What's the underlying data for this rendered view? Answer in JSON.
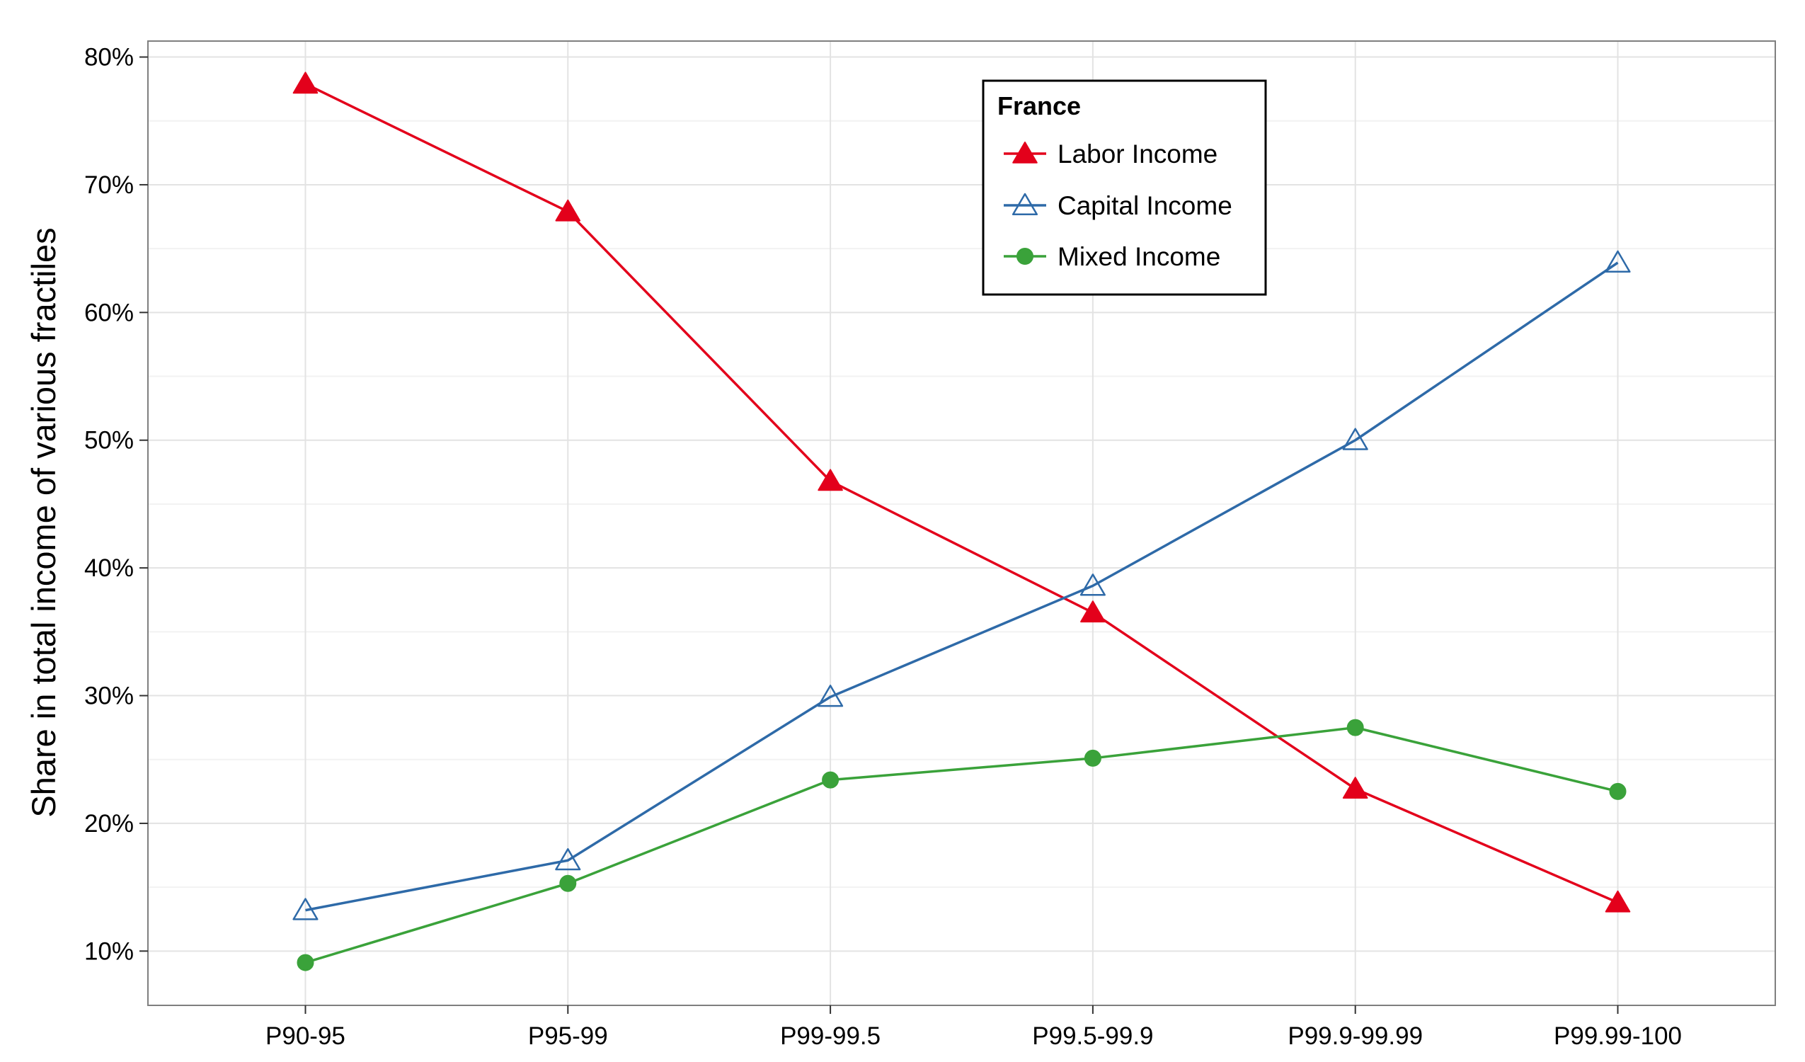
{
  "chart_data": {
    "type": "line",
    "title": "",
    "xlabel": "",
    "ylabel": "Share in total income of various fractiles",
    "categories": [
      "P90-95",
      "P95-99",
      "P99-99.5",
      "P99.5-99.9",
      "P99.9-99.99",
      "P99.99-100"
    ],
    "ylim": [
      0.0575,
      0.8125
    ],
    "yticks": [
      0.1,
      0.2,
      0.3,
      0.4,
      0.5,
      0.6,
      0.7,
      0.8
    ],
    "ytick_labels": [
      "10%",
      "20%",
      "30%",
      "40%",
      "50%",
      "60%",
      "70%",
      "80%"
    ],
    "grid": true,
    "legend": {
      "title": "France",
      "position": "top-center"
    },
    "series": [
      {
        "name": "Labor Income",
        "color": "#e3001b",
        "marker": "filled-triangle",
        "values": [
          0.779,
          0.679,
          0.468,
          0.365,
          0.227,
          0.138
        ]
      },
      {
        "name": "Capital Income",
        "color": "#2e6aa8",
        "marker": "open-triangle",
        "values": [
          0.132,
          0.171,
          0.299,
          0.386,
          0.5,
          0.639
        ]
      },
      {
        "name": "Mixed Income",
        "color": "#3aa23a",
        "marker": "filled-circle",
        "values": [
          0.091,
          0.153,
          0.234,
          0.251,
          0.275,
          0.225
        ]
      }
    ]
  }
}
